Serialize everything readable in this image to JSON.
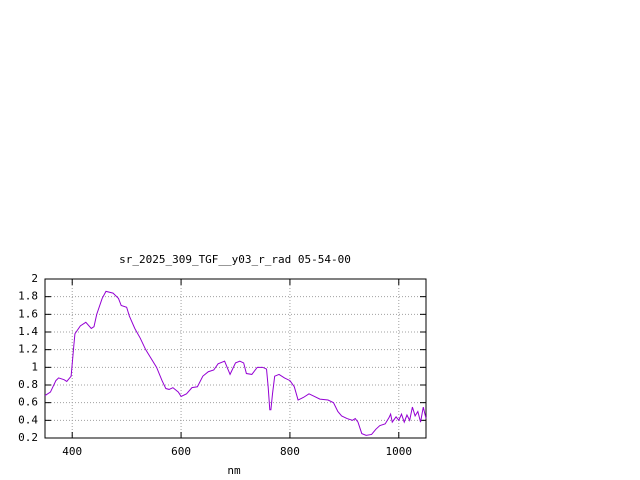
{
  "chart_data": {
    "type": "line",
    "title": "sr_2025_309_TGF__y03_r_rad 05-54-00",
    "xlabel": "nm",
    "x": [
      350,
      360,
      370,
      375,
      385,
      390,
      398,
      403,
      405,
      415,
      425,
      435,
      440,
      445,
      455,
      462,
      475,
      485,
      490,
      500,
      505,
      515,
      525,
      535,
      545,
      555,
      565,
      572,
      578,
      585,
      595,
      600,
      610,
      620,
      630,
      640,
      650,
      660,
      668,
      680,
      690,
      700,
      708,
      715,
      720,
      730,
      740,
      750,
      757,
      760,
      763,
      765,
      768,
      772,
      780,
      790,
      800,
      808,
      815,
      825,
      835,
      845,
      855,
      870,
      880,
      888,
      895,
      905,
      915,
      920,
      925,
      932,
      940,
      950,
      958,
      965,
      975,
      982,
      985,
      988,
      995,
      1000,
      1005,
      1010,
      1015,
      1020,
      1025,
      1030,
      1035,
      1040,
      1045,
      1050
    ],
    "values": [
      0.68,
      0.72,
      0.85,
      0.88,
      0.86,
      0.84,
      0.9,
      1.25,
      1.38,
      1.47,
      1.51,
      1.44,
      1.46,
      1.6,
      1.78,
      1.86,
      1.84,
      1.78,
      1.7,
      1.68,
      1.58,
      1.44,
      1.33,
      1.2,
      1.1,
      1.0,
      0.85,
      0.76,
      0.75,
      0.77,
      0.72,
      0.67,
      0.7,
      0.77,
      0.78,
      0.9,
      0.95,
      0.97,
      1.04,
      1.07,
      0.92,
      1.05,
      1.07,
      1.05,
      0.93,
      0.92,
      1.0,
      1.0,
      0.98,
      0.78,
      0.52,
      0.52,
      0.7,
      0.9,
      0.92,
      0.88,
      0.85,
      0.78,
      0.63,
      0.66,
      0.7,
      0.67,
      0.64,
      0.63,
      0.6,
      0.5,
      0.45,
      0.42,
      0.4,
      0.42,
      0.38,
      0.25,
      0.23,
      0.24,
      0.3,
      0.34,
      0.36,
      0.43,
      0.47,
      0.38,
      0.44,
      0.4,
      0.47,
      0.38,
      0.46,
      0.4,
      0.55,
      0.45,
      0.5,
      0.38,
      0.55,
      0.42
    ],
    "color": "#9400d3",
    "xlim": [
      350,
      1050
    ],
    "xticks": [
      400,
      600,
      800,
      1000
    ],
    "ylim": [
      0.2,
      2
    ],
    "yticks": [
      0.2,
      0.4,
      0.6,
      0.8,
      1,
      1.2,
      1.4,
      1.6,
      1.8,
      2
    ],
    "grid": true
  }
}
